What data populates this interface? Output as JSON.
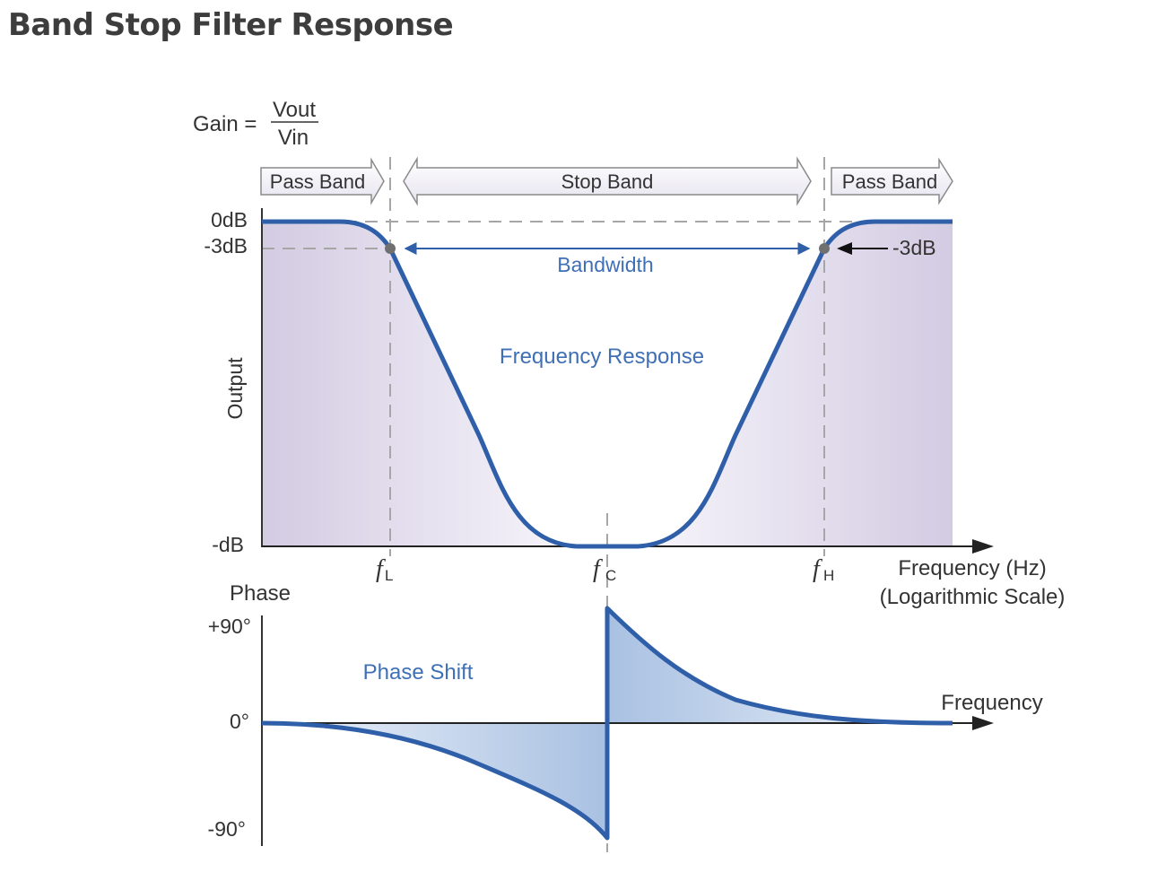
{
  "page": {
    "title": "Band Stop Filter Response"
  },
  "gain": {
    "label": "Gain =",
    "numerator": "Vout",
    "denominator": "Vin"
  },
  "bands": {
    "pass_left": "Pass Band",
    "stop": "Stop Band",
    "pass_right": "Pass Band"
  },
  "magnitude": {
    "y_top": "0dB",
    "y_cutoff": "-3dB",
    "y_bottom": "-dB",
    "y_axis_label": "Output",
    "cutoff_annotation": "-3dB",
    "bandwidth_label": "Bandwidth",
    "curve_label": "Frequency Response",
    "x_label_line1": "Frequency (Hz)",
    "x_label_line2": "(Logarithmic Scale)"
  },
  "freq_marks": {
    "low": {
      "symbol": "f",
      "sub": "L"
    },
    "center": {
      "symbol": "f",
      "sub": "C"
    },
    "high": {
      "symbol": "f",
      "sub": "H"
    }
  },
  "phase": {
    "title": "Phase",
    "y_top": "+90°",
    "y_mid": "0°",
    "y_bottom": "-90°",
    "curve_label": "Phase Shift",
    "x_label": "Frequency"
  },
  "colors": {
    "curve": "#2f5fa8",
    "label_blue": "#3f6fb5",
    "band_fill": "#d9d2e6",
    "phase_fill": "#b9cde6",
    "dash": "#a6a6a6"
  }
}
